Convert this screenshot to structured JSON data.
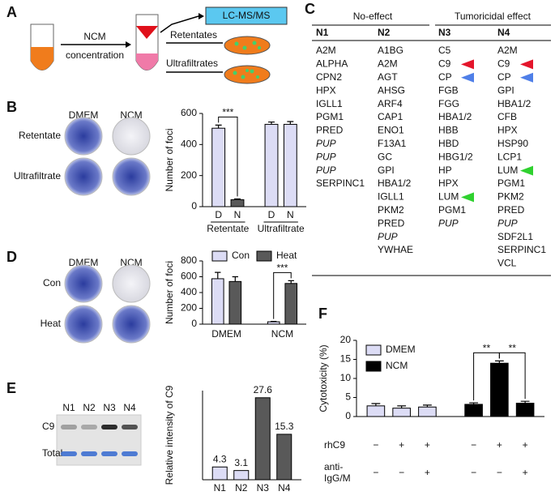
{
  "panels": {
    "A": {
      "panel": "A",
      "box": "LC-MS/MS",
      "method": "NCM",
      "method2": "concentration",
      "out1": "Retentates",
      "out2": "Ultrafiltrates"
    },
    "C": {
      "panel": "C",
      "groups": [
        "No-effect",
        "Tumoricidal effect"
      ],
      "columns": [
        {
          "name": "N1",
          "items": [
            "A2M",
            "ALPHA",
            "CPN2",
            "HPX",
            "IGLL1",
            "PGM1",
            "PRED",
            {
              "text": "PUP",
              "italic": true
            },
            {
              "text": "PUP",
              "italic": true
            },
            {
              "text": "PUP",
              "italic": true
            },
            "SERPINC1"
          ]
        },
        {
          "name": "N2",
          "items": [
            "A1BG",
            "A2M",
            "AGT",
            "AHSG",
            "ARF4",
            "CAP1",
            "ENO1",
            "F13A1",
            "GC",
            "GPI",
            "HBA1/2",
            "IGLL1",
            "PKM2",
            "PRED",
            {
              "text": "PUP",
              "italic": true
            },
            "YWHAE"
          ]
        },
        {
          "name": "N3",
          "items": [
            "C5",
            {
              "text": "C9",
              "arrow": "#e4152b"
            },
            {
              "text": "CP",
              "arrow": "#4f7fe8"
            },
            "FGB",
            "FGG",
            "HBA1/2",
            "HBB",
            "HBD",
            "HBG1/2",
            "HP",
            "HPX",
            {
              "text": "LUM",
              "arrow": "#2fd12f"
            },
            "PGM1",
            {
              "text": "PUP",
              "italic": true
            }
          ]
        },
        {
          "name": "N4",
          "items": [
            "A2M",
            {
              "text": "C9",
              "arrow": "#e4152b"
            },
            {
              "text": "CP",
              "arrow": "#4f7fe8"
            },
            "GPI",
            "HBA1/2",
            "CFB",
            "HPX",
            "HSP90",
            "LCP1",
            {
              "text": "LUM",
              "arrow": "#2fd12f"
            },
            "PGM1",
            "PKM2",
            "PRED",
            {
              "text": "PUP",
              "italic": true
            },
            "SDF2L1",
            "SERPINC1",
            "VCL"
          ]
        }
      ]
    }
  },
  "chart_data": [
    {
      "type": "bar",
      "panel": "B",
      "ylabel": "Number of foci",
      "categories": [
        "D",
        "N",
        "D",
        "N"
      ],
      "groups": [
        "Retentate",
        "Ultrafiltrate"
      ],
      "values": [
        505,
        45,
        530,
        530
      ],
      "errors": [
        20,
        5,
        15,
        18
      ],
      "colors": [
        "#dcdcf5",
        "#595959",
        "#dcdcf5",
        "#dcdcf5"
      ],
      "ylim": [
        0,
        600
      ],
      "yticks": [
        0,
        200,
        400,
        600
      ],
      "significance": [
        {
          "label": "***",
          "between": [
            0,
            1
          ]
        }
      ],
      "images": {
        "columns": [
          "DMEM",
          "NCM"
        ],
        "rows": [
          "Retentate",
          "Ultrafiltrate"
        ]
      }
    },
    {
      "type": "bar",
      "panel": "D",
      "ylabel": "Number of foci",
      "categories": [
        "DMEM",
        "NCM"
      ],
      "legend": "top",
      "series": [
        {
          "name": "Con",
          "color": "#dcdcf5",
          "values": [
            575,
            30
          ],
          "errors": [
            80,
            5
          ]
        },
        {
          "name": "Heat",
          "color": "#595959",
          "values": [
            540,
            515
          ],
          "errors": [
            60,
            35
          ]
        }
      ],
      "ylim": [
        0,
        800
      ],
      "yticks": [
        0,
        200,
        400,
        600,
        800
      ],
      "significance": [
        {
          "label": "***",
          "category": 1
        }
      ],
      "images": {
        "columns": [
          "DMEM",
          "NCM"
        ],
        "rows": [
          "Con",
          "Heat"
        ]
      }
    },
    {
      "type": "bar",
      "panel": "E",
      "ylabel": "Relative intensity of C9",
      "categories": [
        "N1",
        "N2",
        "N3",
        "N4"
      ],
      "values": [
        4.3,
        3.1,
        27.6,
        15.3
      ],
      "colors": [
        "#dcdcf5",
        "#dcdcf5",
        "#595959",
        "#595959"
      ],
      "show_values": true,
      "ylim": [
        0,
        30
      ],
      "blot": {
        "lanes": [
          "N1",
          "N2",
          "N3",
          "N4"
        ],
        "rows": [
          "C9",
          "Total"
        ]
      }
    },
    {
      "type": "bar",
      "panel": "F",
      "ylabel": "Cytotoxicity (%)",
      "legend": "upper left",
      "series": [
        {
          "name": "DMEM",
          "color": "#dcdcf5",
          "values": [
            2.8,
            2.2,
            2.5
          ],
          "errors": [
            0.6,
            0.6,
            0.5
          ]
        },
        {
          "name": "NCM",
          "color": "#000000",
          "values": [
            3.2,
            14,
            3.5
          ],
          "errors": [
            0.4,
            0.6,
            0.5
          ]
        }
      ],
      "ylim": [
        0,
        20
      ],
      "yticks": [
        0,
        5,
        10,
        15,
        20
      ],
      "significance": [
        {
          "label": "**",
          "series": 1,
          "between": [
            0,
            1
          ]
        },
        {
          "label": "**",
          "series": 1,
          "between": [
            1,
            2
          ]
        }
      ],
      "conditions": [
        {
          "label": [
            "rhC9"
          ],
          "signs": [
            "−",
            "+",
            "+",
            "−",
            "+",
            "+"
          ]
        },
        {
          "label": [
            "anti-",
            "IgG/M"
          ],
          "signs": [
            "−",
            "−",
            "+",
            "−",
            "−",
            "+"
          ]
        }
      ]
    }
  ]
}
